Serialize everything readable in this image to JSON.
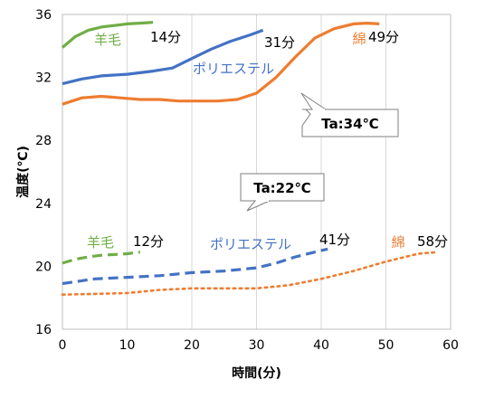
{
  "chart_data": {
    "type": "line",
    "xlabel": "時間(分)",
    "ylabel": "温度(℃)",
    "xlim": [
      0,
      60
    ],
    "ylim": [
      16,
      36
    ],
    "x_ticks": [
      "0",
      "10",
      "20",
      "30",
      "40",
      "50",
      "60"
    ],
    "y_ticks": [
      "16",
      "20",
      "24",
      "28",
      "32",
      "36"
    ],
    "grid": "vertical",
    "colors": {
      "wool": "#70ad47",
      "polyester": "#4472c4",
      "cotton": "#ed7d31"
    },
    "annotations": [
      {
        "text": "Ta:34℃"
      },
      {
        "text": "Ta:22℃"
      }
    ],
    "series": [
      {
        "name": "羊毛",
        "time_label": "14分",
        "condition": "Ta:34℃",
        "style": "solid",
        "x": [
          0,
          2,
          4,
          6,
          8,
          10,
          12,
          14
        ],
        "y": [
          33.9,
          34.6,
          35.0,
          35.2,
          35.3,
          35.4,
          35.45,
          35.5
        ]
      },
      {
        "name": "ポリエステル",
        "time_label": "31分",
        "condition": "Ta:34℃",
        "style": "solid",
        "x": [
          0,
          3,
          6,
          10,
          14,
          17,
          20,
          23,
          26,
          29,
          31
        ],
        "y": [
          31.6,
          31.9,
          32.1,
          32.2,
          32.4,
          32.6,
          33.2,
          33.8,
          34.3,
          34.7,
          35.0
        ]
      },
      {
        "name": "綿",
        "time_label": "49分",
        "condition": "Ta:34℃",
        "style": "solid",
        "x": [
          0,
          3,
          6,
          9,
          12,
          15,
          18,
          21,
          24,
          27,
          30,
          33,
          36,
          39,
          42,
          45,
          47,
          49
        ],
        "y": [
          30.3,
          30.7,
          30.8,
          30.7,
          30.6,
          30.6,
          30.5,
          30.5,
          30.5,
          30.6,
          31.0,
          32.0,
          33.3,
          34.5,
          35.1,
          35.4,
          35.45,
          35.4
        ]
      },
      {
        "name": "羊毛",
        "time_label": "12分",
        "condition": "Ta:22℃",
        "style": "dashed",
        "x": [
          0,
          2,
          4,
          6,
          8,
          10,
          12
        ],
        "y": [
          20.2,
          20.45,
          20.6,
          20.7,
          20.75,
          20.8,
          20.9
        ]
      },
      {
        "name": "ポリエステル",
        "time_label": "41分",
        "condition": "Ta:22℃",
        "style": "dashed",
        "x": [
          0,
          5,
          10,
          15,
          20,
          25,
          30,
          33,
          36,
          39,
          41
        ],
        "y": [
          18.9,
          19.2,
          19.3,
          19.4,
          19.6,
          19.7,
          19.9,
          20.2,
          20.6,
          20.9,
          21.1
        ]
      },
      {
        "name": "綿",
        "time_label": "58分",
        "condition": "Ta:22℃",
        "style": "dotted",
        "x": [
          0,
          5,
          10,
          15,
          20,
          25,
          30,
          35,
          40,
          45,
          50,
          55,
          58
        ],
        "y": [
          18.2,
          18.25,
          18.3,
          18.5,
          18.6,
          18.6,
          18.6,
          18.8,
          19.2,
          19.7,
          20.3,
          20.8,
          20.9
        ]
      }
    ]
  }
}
